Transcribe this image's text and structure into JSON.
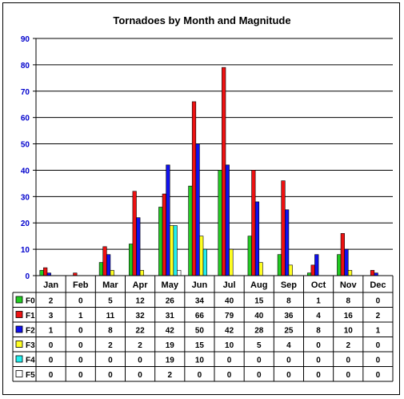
{
  "chart_data": {
    "type": "bar",
    "title": "Tornadoes by Month and Magnitude",
    "categories": [
      "Jan",
      "Feb",
      "Mar",
      "Apr",
      "May",
      "Jun",
      "Jul",
      "Aug",
      "Sep",
      "Oct",
      "Nov",
      "Dec"
    ],
    "ylim": [
      0,
      90
    ],
    "yticks": [
      "0",
      "10",
      "20",
      "30",
      "40",
      "50",
      "60",
      "70",
      "80",
      "90"
    ],
    "grid": true,
    "legend": "data-table-left",
    "series": [
      {
        "name": "F0",
        "color": "#22cc22",
        "values": [
          2,
          0,
          5,
          12,
          26,
          34,
          40,
          15,
          8,
          1,
          8,
          0
        ]
      },
      {
        "name": "F1",
        "color": "#ee1111",
        "values": [
          3,
          1,
          11,
          32,
          31,
          66,
          79,
          40,
          36,
          4,
          16,
          2
        ]
      },
      {
        "name": "F2",
        "color": "#1111ee",
        "values": [
          1,
          0,
          8,
          22,
          42,
          50,
          42,
          28,
          25,
          8,
          10,
          1
        ]
      },
      {
        "name": "F3",
        "color": "#ffff22",
        "values": [
          0,
          0,
          2,
          2,
          19,
          15,
          10,
          5,
          4,
          0,
          2,
          0
        ]
      },
      {
        "name": "F4",
        "color": "#22eeee",
        "values": [
          0,
          0,
          0,
          0,
          19,
          10,
          0,
          0,
          0,
          0,
          0,
          0
        ]
      },
      {
        "name": "F5",
        "color": "#ffffff",
        "values": [
          0,
          0,
          0,
          0,
          2,
          0,
          0,
          0,
          0,
          0,
          0,
          0
        ]
      }
    ]
  }
}
